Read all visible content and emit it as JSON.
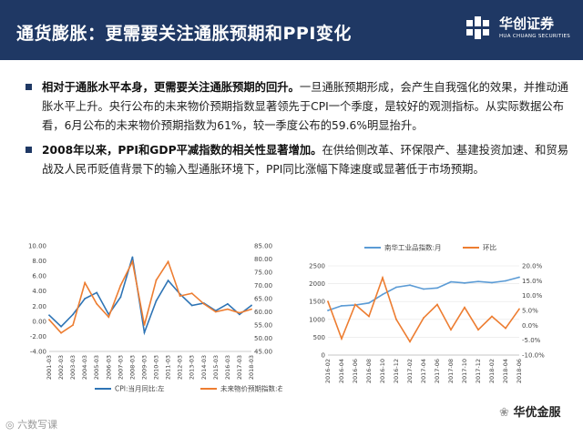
{
  "header": {
    "title": "通货膨胀：更需要关注通胀预期和PPI变化",
    "logo_cn": "华创证券",
    "logo_en": "HUA CHUANG SECURITIES",
    "bg_color": "#1f3864"
  },
  "bullets": [
    {
      "bold": "相对于通胀水平本身，更需要关注通胀预期的回升。",
      "text": "一旦通胀预期形成，会产生自我强化的效果，并推动通胀水平上升。央行公布的未来物价预期指数显著领先于CPI一个季度，是较好的观测指标。从实际数据公布看，6月公布的未来物价预期指数为61%，较一季度公布的59.6%明显抬升。"
    },
    {
      "bold": "2008年以来，PPI和GDP平减指数的相关性显著增加。",
      "text": "在供给侧改革、环保限产、基建投资加速、和贸易战及人民币贬值背景下的输入型通胀环境下，PPI同比涨幅下降速度或显著低于市场预期。"
    }
  ],
  "chart_data": [
    {
      "type": "line",
      "title": "",
      "x": [
        "2001-03",
        "2002-03",
        "2003-03",
        "2004-03",
        "2005-03",
        "2006-03",
        "2007-03",
        "2008-03",
        "2009-03",
        "2010-03",
        "2011-03",
        "2012-03",
        "2013-03",
        "2014-03",
        "2015-03",
        "2016-03",
        "2017-03",
        "2018-03"
      ],
      "ylim_left": [
        -4.0,
        10.0
      ],
      "yticks_left": [
        "10.00",
        "8.00",
        "6.00",
        "4.00",
        "2.00",
        "0.00",
        "-2.00",
        "-4.00"
      ],
      "ylim_right": [
        45.0,
        85.0
      ],
      "yticks_right": [
        "85.00",
        "80.00",
        "75.00",
        "70.00",
        "65.00",
        "60.00",
        "55.00",
        "50.00",
        "45.00"
      ],
      "series": [
        {
          "name": "CPI:当月同比:左",
          "axis": "left",
          "color": "#2e74b5",
          "values": [
            0.8,
            -0.7,
            0.9,
            3.0,
            3.8,
            0.9,
            3.2,
            8.5,
            -1.5,
            2.7,
            5.4,
            3.6,
            2.1,
            2.4,
            1.4,
            2.3,
            0.9,
            2.1
          ]
        },
        {
          "name": "未来物价预期指数:右",
          "axis": "right",
          "color": "#ed7d31",
          "values": [
            57.0,
            52.0,
            55.0,
            71.0,
            63.0,
            58.0,
            70.0,
            79.0,
            55.0,
            72.0,
            79.0,
            66.0,
            67.0,
            63.0,
            60.0,
            61.0,
            59.6,
            61.0
          ]
        }
      ]
    },
    {
      "type": "line",
      "title": "",
      "x": [
        "2016-02",
        "2016-04",
        "2016-06",
        "2016-08",
        "2016-10",
        "2016-12",
        "2017-02",
        "2017-04",
        "2017-06",
        "2017-08",
        "2017-10",
        "2017-12",
        "2018-02",
        "2018-04",
        "2018-06"
      ],
      "ylim_left": [
        0,
        2500
      ],
      "yticks_left": [
        "2500",
        "2000",
        "1500",
        "1000",
        "500",
        "0"
      ],
      "ylim_right": [
        -10.0,
        20.0
      ],
      "yticks_right": [
        "20.0%",
        "15.0%",
        "10.0%",
        "5.0%",
        "0.0%",
        "-5.0%",
        "-10.0%"
      ],
      "series": [
        {
          "name": "南华工业品指数:月",
          "axis": "left",
          "color": "#5b9bd5",
          "values": [
            1250,
            1380,
            1400,
            1460,
            1700,
            1900,
            1960,
            1850,
            1880,
            2050,
            2020,
            2060,
            2030,
            2080,
            2180
          ]
        },
        {
          "name": "环比",
          "axis": "right",
          "color": "#ed7d31",
          "values": [
            8.0,
            -4.5,
            7.0,
            3.0,
            16.0,
            2.0,
            -5.5,
            2.5,
            7.0,
            -1.5,
            6.0,
            -1.5,
            3.0,
            -1.0,
            5.5
          ]
        }
      ]
    }
  ],
  "watermark": {
    "left": "六数写课",
    "right": "华优金服"
  }
}
